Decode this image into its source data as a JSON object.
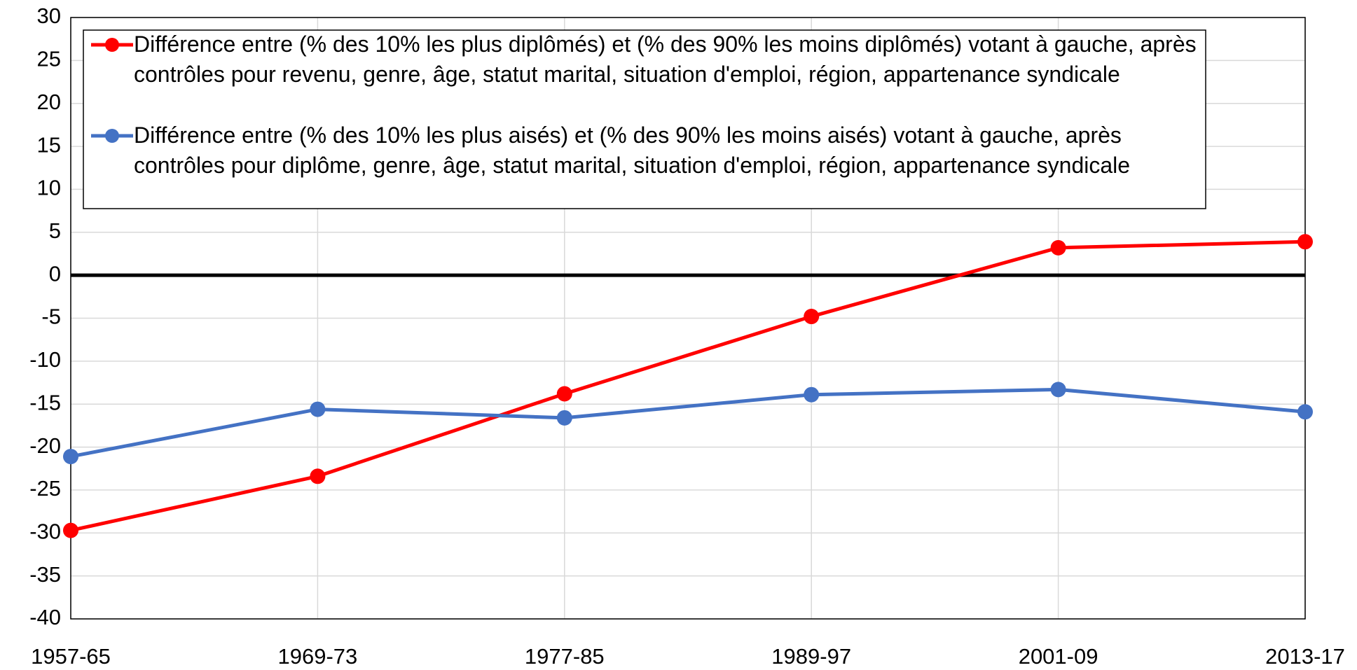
{
  "chart_data": {
    "type": "line",
    "categories": [
      "1957-65",
      "1969-73",
      "1977-85",
      "1989-97",
      "2001-09",
      "2013-17"
    ],
    "series": [
      {
        "name": "Différence entre (% des 10% les plus diplômés) et (% des 90% les moins diplômés) votant à gauche, après contrôles pour revenu, genre, âge, statut marital, situation d'emploi, région, appartenance syndicale",
        "color": "#ff0000",
        "values": [
          -29.7,
          -23.4,
          -13.8,
          -4.8,
          3.2,
          3.9
        ]
      },
      {
        "name": "Différence entre (% des 10% les plus aisés) et (% des 90% les moins aisés) votant à gauche, après contrôles pour diplôme, genre, âge, statut marital, situation d'emploi, région, appartenance syndicale",
        "color": "#4472c4",
        "values": [
          -21.1,
          -15.6,
          -16.6,
          -13.9,
          -13.3,
          -15.9
        ]
      }
    ],
    "ylim": [
      -40,
      30
    ],
    "yticks": [
      -40,
      -35,
      -30,
      -25,
      -20,
      -15,
      -10,
      -5,
      0,
      5,
      10,
      15,
      20,
      25,
      30
    ],
    "grid": true
  }
}
